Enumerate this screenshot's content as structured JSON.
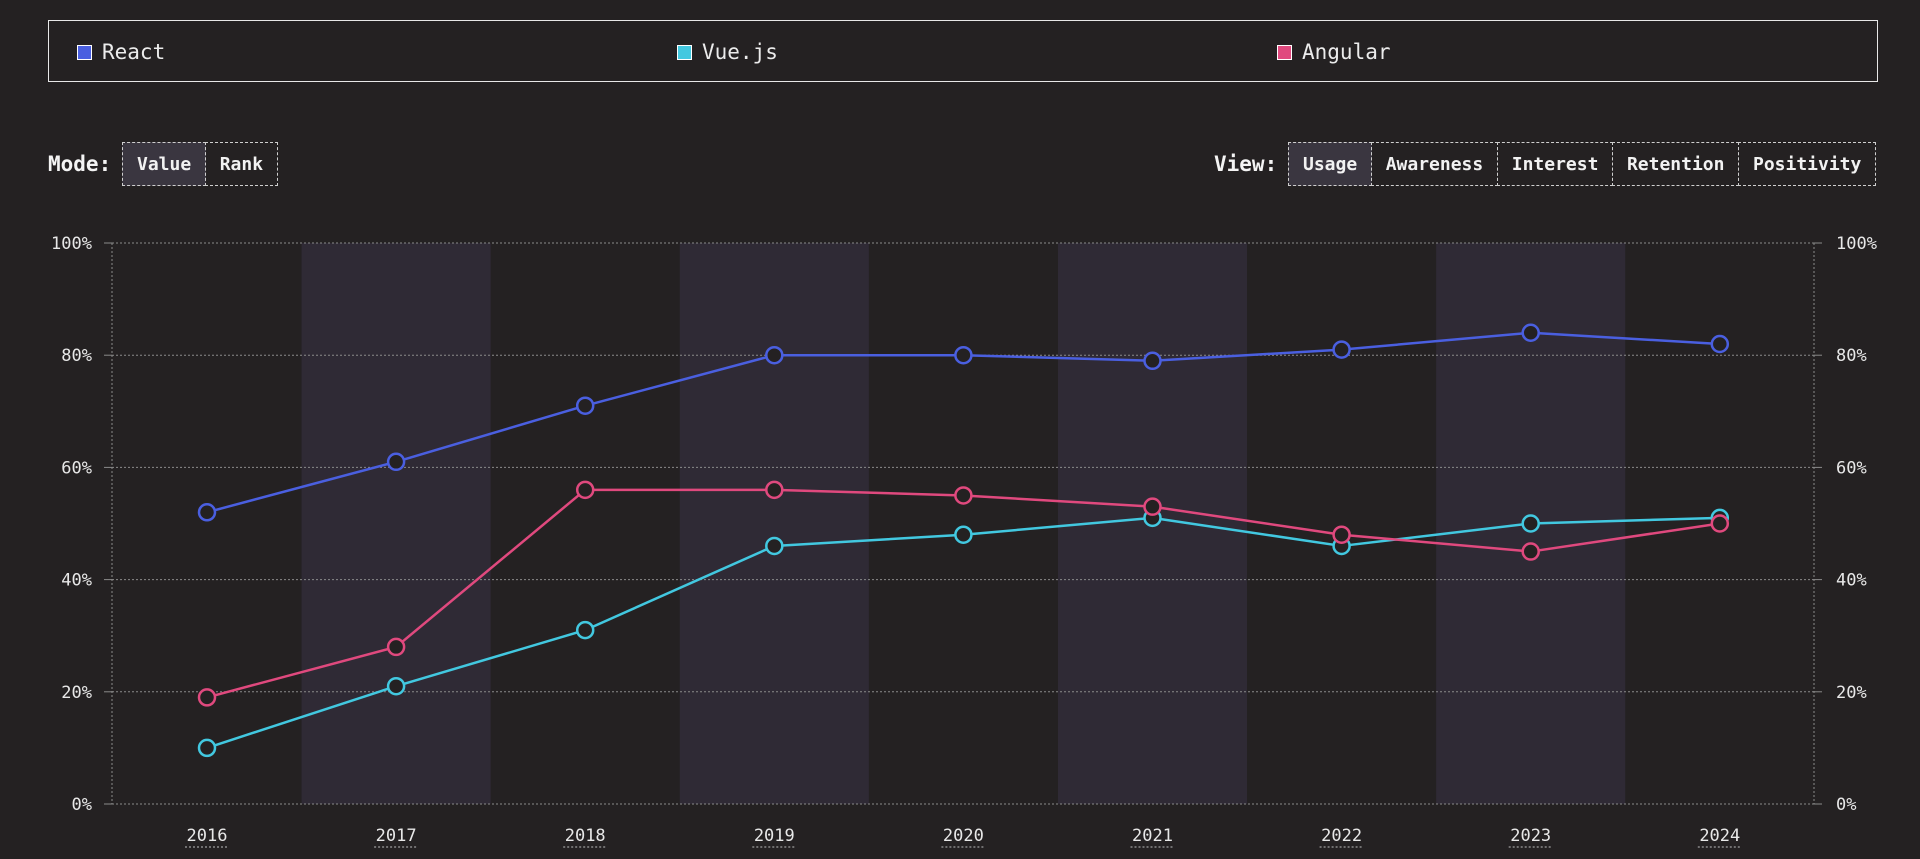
{
  "legend": [
    {
      "label": "React",
      "color": "#4a5fe0"
    },
    {
      "label": "Vue.js",
      "color": "#42c8e0"
    },
    {
      "label": "Angular",
      "color": "#e0497e"
    }
  ],
  "mode": {
    "label": "Mode:",
    "options": [
      "Value",
      "Rank"
    ],
    "selected": "Value"
  },
  "view": {
    "label": "View:",
    "options": [
      "Usage",
      "Awareness",
      "Interest",
      "Retention",
      "Positivity"
    ],
    "selected": "Usage"
  },
  "chart_data": {
    "type": "line",
    "x": [
      "2016",
      "2017",
      "2018",
      "2019",
      "2020",
      "2021",
      "2022",
      "2023",
      "2024"
    ],
    "ylim": [
      0,
      100
    ],
    "yticks": [
      "0%",
      "20%",
      "40%",
      "60%",
      "80%",
      "100%"
    ],
    "series": [
      {
        "name": "React",
        "color": "#4a5fe0",
        "values": [
          52,
          61,
          71,
          80,
          80,
          79,
          81,
          84,
          82
        ]
      },
      {
        "name": "Vue.js",
        "color": "#42c8e0",
        "values": [
          10,
          21,
          31,
          46,
          48,
          51,
          46,
          50,
          51
        ]
      },
      {
        "name": "Angular",
        "color": "#e0497e",
        "values": [
          19,
          28,
          56,
          56,
          55,
          53,
          48,
          45,
          50
        ]
      }
    ],
    "grid": true,
    "alternating_bands": true,
    "legend_position": "top"
  }
}
